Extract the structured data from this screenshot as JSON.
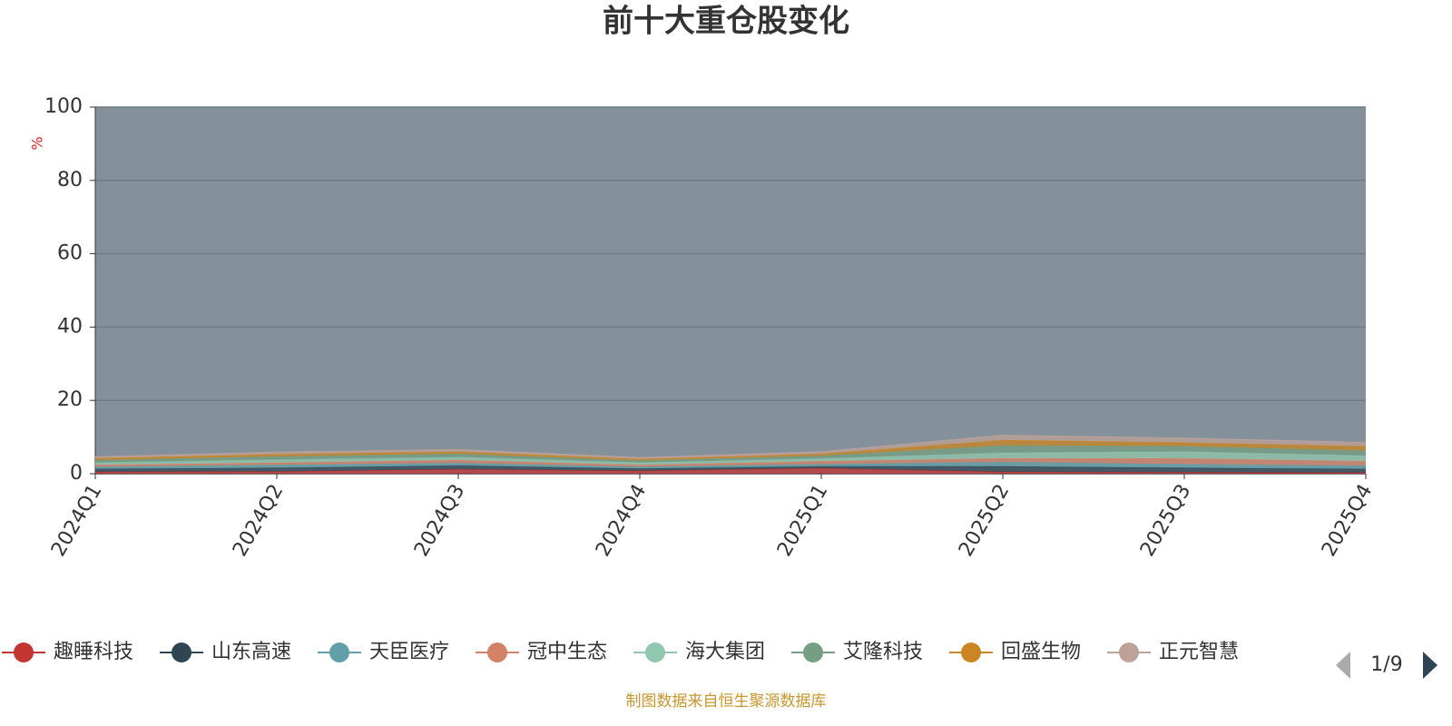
{
  "chart_data": {
    "type": "stacked_area",
    "title": "前十大重仓股变化",
    "y_unit": "%",
    "categories": [
      "2024Q1",
      "2024Q2",
      "2024Q3",
      "2024Q4",
      "2025Q1",
      "2025Q2",
      "2025Q3",
      "2025Q4"
    ],
    "ylim": [
      0,
      100
    ],
    "yticks": [
      0,
      20,
      40,
      60,
      80,
      100
    ],
    "grid": true,
    "series": [
      {
        "name": "趣睡科技",
        "color": "#c23531",
        "values": [
          0.5,
          0.6,
          1.2,
          0.8,
          1.5,
          0.5,
          0.4,
          0.3
        ]
      },
      {
        "name": "山东高速",
        "color": "#2f4554",
        "values": [
          0.8,
          1.0,
          1.0,
          0.6,
          0.5,
          1.5,
          1.2,
          1.0
        ]
      },
      {
        "name": "天臣医疗",
        "color": "#61a0a8",
        "values": [
          0.6,
          0.8,
          0.7,
          0.5,
          0.6,
          1.2,
          1.0,
          0.9
        ]
      },
      {
        "name": "冠中生态",
        "color": "#d48265",
        "values": [
          0.5,
          0.6,
          0.8,
          0.5,
          0.8,
          1.0,
          1.6,
          1.2
        ]
      },
      {
        "name": "海大集团",
        "color": "#91c7ae",
        "values": [
          0.6,
          0.8,
          0.8,
          0.6,
          0.7,
          1.5,
          1.8,
          1.5
        ]
      },
      {
        "name": "艾隆科技",
        "color": "#749f83",
        "values": [
          0.7,
          0.9,
          0.9,
          0.6,
          0.8,
          2.0,
          1.5,
          1.4
        ]
      },
      {
        "name": "回盛生物",
        "color": "#ca8622",
        "values": [
          0.5,
          0.6,
          0.6,
          0.4,
          0.5,
          1.5,
          1.0,
          1.2
        ]
      },
      {
        "name": "正元智慧",
        "color": "#bda29a",
        "values": [
          0.4,
          0.6,
          0.6,
          0.4,
          0.6,
          1.3,
          1.2,
          1.0
        ]
      }
    ],
    "legend_page": "1/9",
    "source": "制图数据来自恒生聚源数据库"
  }
}
